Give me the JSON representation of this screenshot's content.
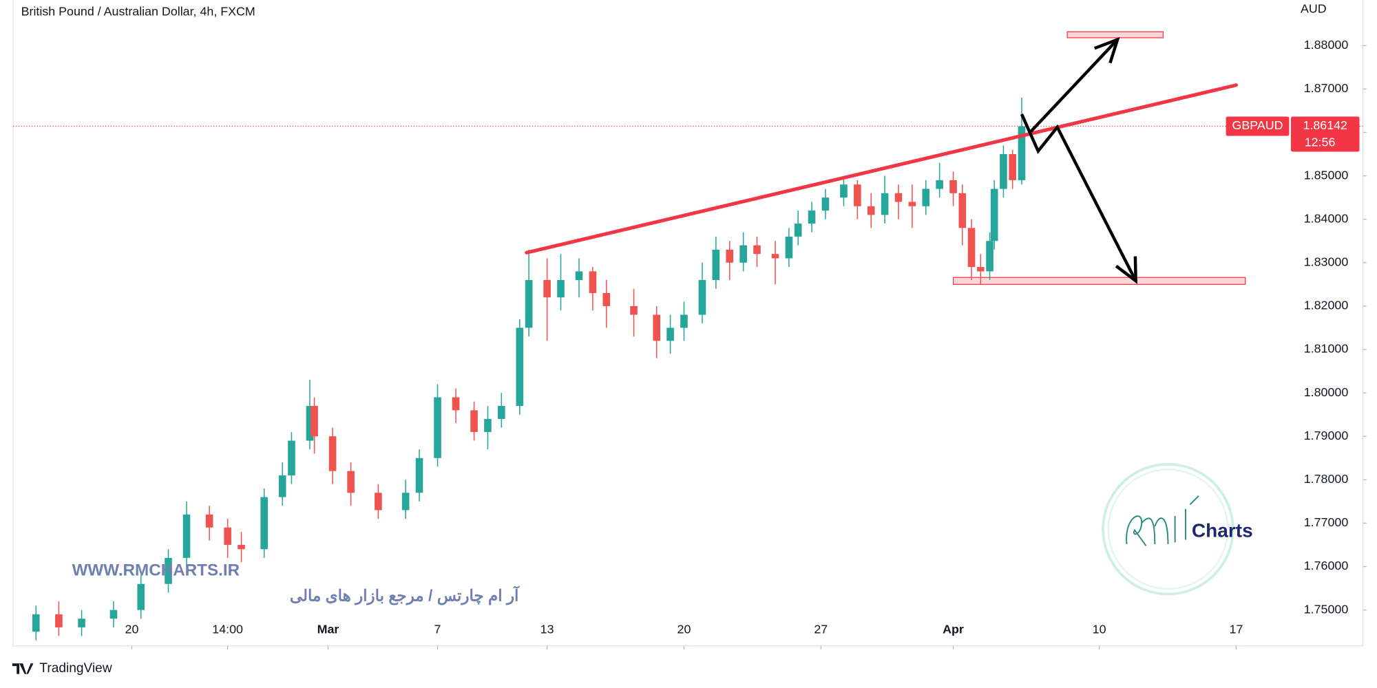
{
  "chart_data": {
    "type": "candlestick",
    "title": "British Pound / Australian Dollar, 4h, FXCM",
    "currency": "AUD",
    "symbol": "GBPAUD",
    "last_price": 1.86142,
    "last_price_label": "1.86142",
    "countdown": "12:56",
    "up_color": "#26a69a",
    "down_color": "#ef5350",
    "xlim": [
      0,
      280
    ],
    "ylim": [
      1.748,
      1.8905
    ],
    "xticks": [
      {
        "value": 26,
        "label": "20"
      },
      {
        "value": 47,
        "label": "14:00"
      },
      {
        "value": 69,
        "label": "Mar"
      },
      {
        "value": 93,
        "label": "7"
      },
      {
        "value": 117,
        "label": "13"
      },
      {
        "value": 147,
        "label": "20"
      },
      {
        "value": 177,
        "label": "27"
      },
      {
        "value": 206,
        "label": "Apr"
      },
      {
        "value": 238,
        "label": "10"
      },
      {
        "value": 268,
        "label": "17"
      }
    ],
    "yticks": [
      {
        "value": 1.75,
        "label": "1.75000"
      },
      {
        "value": 1.76,
        "label": "1.76000"
      },
      {
        "value": 1.77,
        "label": "1.77000"
      },
      {
        "value": 1.78,
        "label": "1.78000"
      },
      {
        "value": 1.79,
        "label": "1.79000"
      },
      {
        "value": 1.8,
        "label": "1.80000"
      },
      {
        "value": 1.81,
        "label": "1.81000"
      },
      {
        "value": 1.82,
        "label": "1.82000"
      },
      {
        "value": 1.83,
        "label": "1.83000"
      },
      {
        "value": 1.84,
        "label": "1.84000"
      },
      {
        "value": 1.85,
        "label": "1.85000"
      },
      {
        "value": 1.86,
        "label": "1.86000"
      },
      {
        "value": 1.87,
        "label": "1.87000"
      },
      {
        "value": 1.88,
        "label": "1.88000"
      }
    ],
    "candles": [
      [
        5,
        1.745,
        1.751,
        1.743,
        1.749
      ],
      [
        10,
        1.749,
        1.752,
        1.744,
        1.746
      ],
      [
        15,
        1.746,
        1.75,
        1.744,
        1.748
      ],
      [
        22,
        1.748,
        1.752,
        1.746,
        1.75
      ],
      [
        28,
        1.75,
        1.758,
        1.748,
        1.756
      ],
      [
        34,
        1.756,
        1.764,
        1.754,
        1.762
      ],
      [
        38,
        1.762,
        1.775,
        1.76,
        1.772
      ],
      [
        43,
        1.772,
        1.774,
        1.766,
        1.769
      ],
      [
        47,
        1.769,
        1.771,
        1.762,
        1.765
      ],
      [
        50,
        1.765,
        1.768,
        1.761,
        1.764
      ],
      [
        55,
        1.764,
        1.778,
        1.762,
        1.776
      ],
      [
        59,
        1.776,
        1.784,
        1.774,
        1.781
      ],
      [
        61,
        1.781,
        1.791,
        1.779,
        1.789
      ],
      [
        65,
        1.789,
        1.803,
        1.787,
        1.797
      ],
      [
        66,
        1.797,
        1.799,
        1.786,
        1.79
      ],
      [
        70,
        1.79,
        1.792,
        1.779,
        1.782
      ],
      [
        74,
        1.782,
        1.784,
        1.774,
        1.777
      ],
      [
        80,
        1.777,
        1.779,
        1.771,
        1.773
      ],
      [
        86,
        1.773,
        1.78,
        1.771,
        1.777
      ],
      [
        89,
        1.777,
        1.787,
        1.775,
        1.785
      ],
      [
        93,
        1.785,
        1.802,
        1.783,
        1.799
      ],
      [
        97,
        1.799,
        1.801,
        1.793,
        1.796
      ],
      [
        101,
        1.796,
        1.798,
        1.789,
        1.791
      ],
      [
        104,
        1.791,
        1.797,
        1.787,
        1.794
      ],
      [
        107,
        1.794,
        1.8,
        1.792,
        1.797
      ],
      [
        111,
        1.797,
        1.817,
        1.795,
        1.815
      ],
      [
        113,
        1.815,
        1.833,
        1.813,
        1.826
      ],
      [
        117,
        1.826,
        1.831,
        1.812,
        1.822
      ],
      [
        120,
        1.822,
        1.832,
        1.819,
        1.826
      ],
      [
        124,
        1.826,
        1.831,
        1.822,
        1.828
      ],
      [
        127,
        1.828,
        1.829,
        1.819,
        1.823
      ],
      [
        130,
        1.823,
        1.826,
        1.815,
        1.82
      ],
      [
        136,
        1.82,
        1.824,
        1.813,
        1.818
      ],
      [
        141,
        1.818,
        1.82,
        1.808,
        1.812
      ],
      [
        144,
        1.812,
        1.818,
        1.809,
        1.815
      ],
      [
        147,
        1.815,
        1.821,
        1.812,
        1.818
      ],
      [
        151,
        1.818,
        1.83,
        1.816,
        1.826
      ],
      [
        154,
        1.826,
        1.836,
        1.824,
        1.833
      ],
      [
        157,
        1.833,
        1.835,
        1.826,
        1.83
      ],
      [
        160,
        1.83,
        1.837,
        1.828,
        1.834
      ],
      [
        163,
        1.834,
        1.836,
        1.829,
        1.832
      ],
      [
        167,
        1.832,
        1.835,
        1.825,
        1.831
      ],
      [
        170,
        1.831,
        1.838,
        1.829,
        1.836
      ],
      [
        172,
        1.836,
        1.842,
        1.834,
        1.839
      ],
      [
        175,
        1.839,
        1.844,
        1.837,
        1.842
      ],
      [
        178,
        1.842,
        1.847,
        1.84,
        1.845
      ],
      [
        182,
        1.845,
        1.85,
        1.843,
        1.848
      ],
      [
        185,
        1.848,
        1.849,
        1.84,
        1.843
      ],
      [
        188,
        1.843,
        1.846,
        1.838,
        1.841
      ],
      [
        191,
        1.841,
        1.85,
        1.839,
        1.846
      ],
      [
        194,
        1.846,
        1.848,
        1.84,
        1.844
      ],
      [
        197,
        1.844,
        1.848,
        1.838,
        1.843
      ],
      [
        200,
        1.843,
        1.849,
        1.841,
        1.847
      ],
      [
        203,
        1.847,
        1.853,
        1.845,
        1.849
      ],
      [
        206,
        1.849,
        1.851,
        1.843,
        1.846
      ],
      [
        208,
        1.846,
        1.848,
        1.834,
        1.838
      ],
      [
        210,
        1.838,
        1.84,
        1.826,
        1.829
      ],
      [
        212,
        1.829,
        1.832,
        1.825,
        1.828
      ],
      [
        214,
        1.828,
        1.837,
        1.826,
        1.835
      ],
      [
        215,
        1.835,
        1.849,
        1.833,
        1.847
      ],
      [
        217,
        1.847,
        1.857,
        1.845,
        1.855
      ],
      [
        219,
        1.855,
        1.856,
        1.847,
        1.849
      ],
      [
        221,
        1.849,
        1.868,
        1.848,
        1.8614
      ]
    ],
    "trendline": [
      [
        112.5,
        1.8323
      ],
      [
        268,
        1.8709
      ]
    ],
    "zones": [
      [
        231,
        252,
        1.8818,
        1.8832
      ],
      [
        206,
        270,
        1.825,
        1.8266
      ]
    ],
    "arrows": [
      [
        [
          223,
          1.8602
        ],
        [
          242,
          1.8814
        ]
      ],
      [
        [
          221,
          1.8642
        ],
        [
          224.6,
          1.8557
        ],
        [
          228.8,
          1.8612
        ],
        [
          246,
          1.8258
        ]
      ]
    ],
    "watermark": "WWW.RMCHARTS.IR",
    "watermark_fa": "آر ام چارتس / مرجع بازار های مالی",
    "logo_text": "Charts",
    "brand": "TradingView"
  }
}
